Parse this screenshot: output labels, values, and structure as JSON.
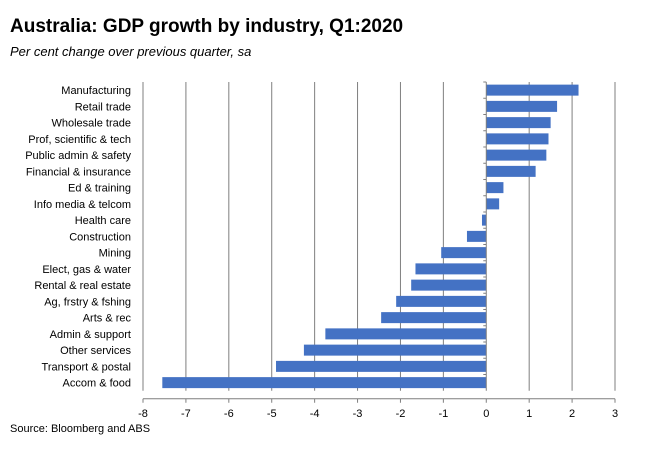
{
  "chart_data": {
    "type": "bar",
    "orientation": "horizontal",
    "title": "Australia:  GDP growth by industry,  Q1:2020",
    "subtitle": "Per cent change over previous quarter, sa",
    "source": "Source: Bloomberg and ABS",
    "xlabel": "",
    "ylabel": "",
    "xlim": [
      -8,
      3
    ],
    "xticks": [
      -8,
      -7,
      -6,
      -5,
      -4,
      -3,
      -2,
      -1,
      0,
      1,
      2,
      3
    ],
    "grid": "vertical",
    "legend": "none",
    "bar_color": "#4472c4",
    "categories": [
      "Manufacturing",
      "Retail trade",
      "Wholesale trade",
      "Prof, scientific & tech",
      "Public admin & safety",
      "Financial & insurance",
      "Ed & training",
      "Info media & telcom",
      "Health care",
      "Construction",
      "Mining",
      "Elect, gas & water",
      "Rental  & real estate",
      "Ag, frstry & fshing",
      "Arts & rec",
      "Admin & support",
      "Other services",
      "Transport & postal",
      "Accom & food"
    ],
    "values": [
      2.15,
      1.65,
      1.5,
      1.45,
      1.4,
      1.15,
      0.4,
      0.3,
      -0.1,
      -0.45,
      -1.05,
      -1.65,
      -1.75,
      -2.1,
      -2.45,
      -3.75,
      -4.25,
      -4.9,
      -7.55
    ]
  }
}
